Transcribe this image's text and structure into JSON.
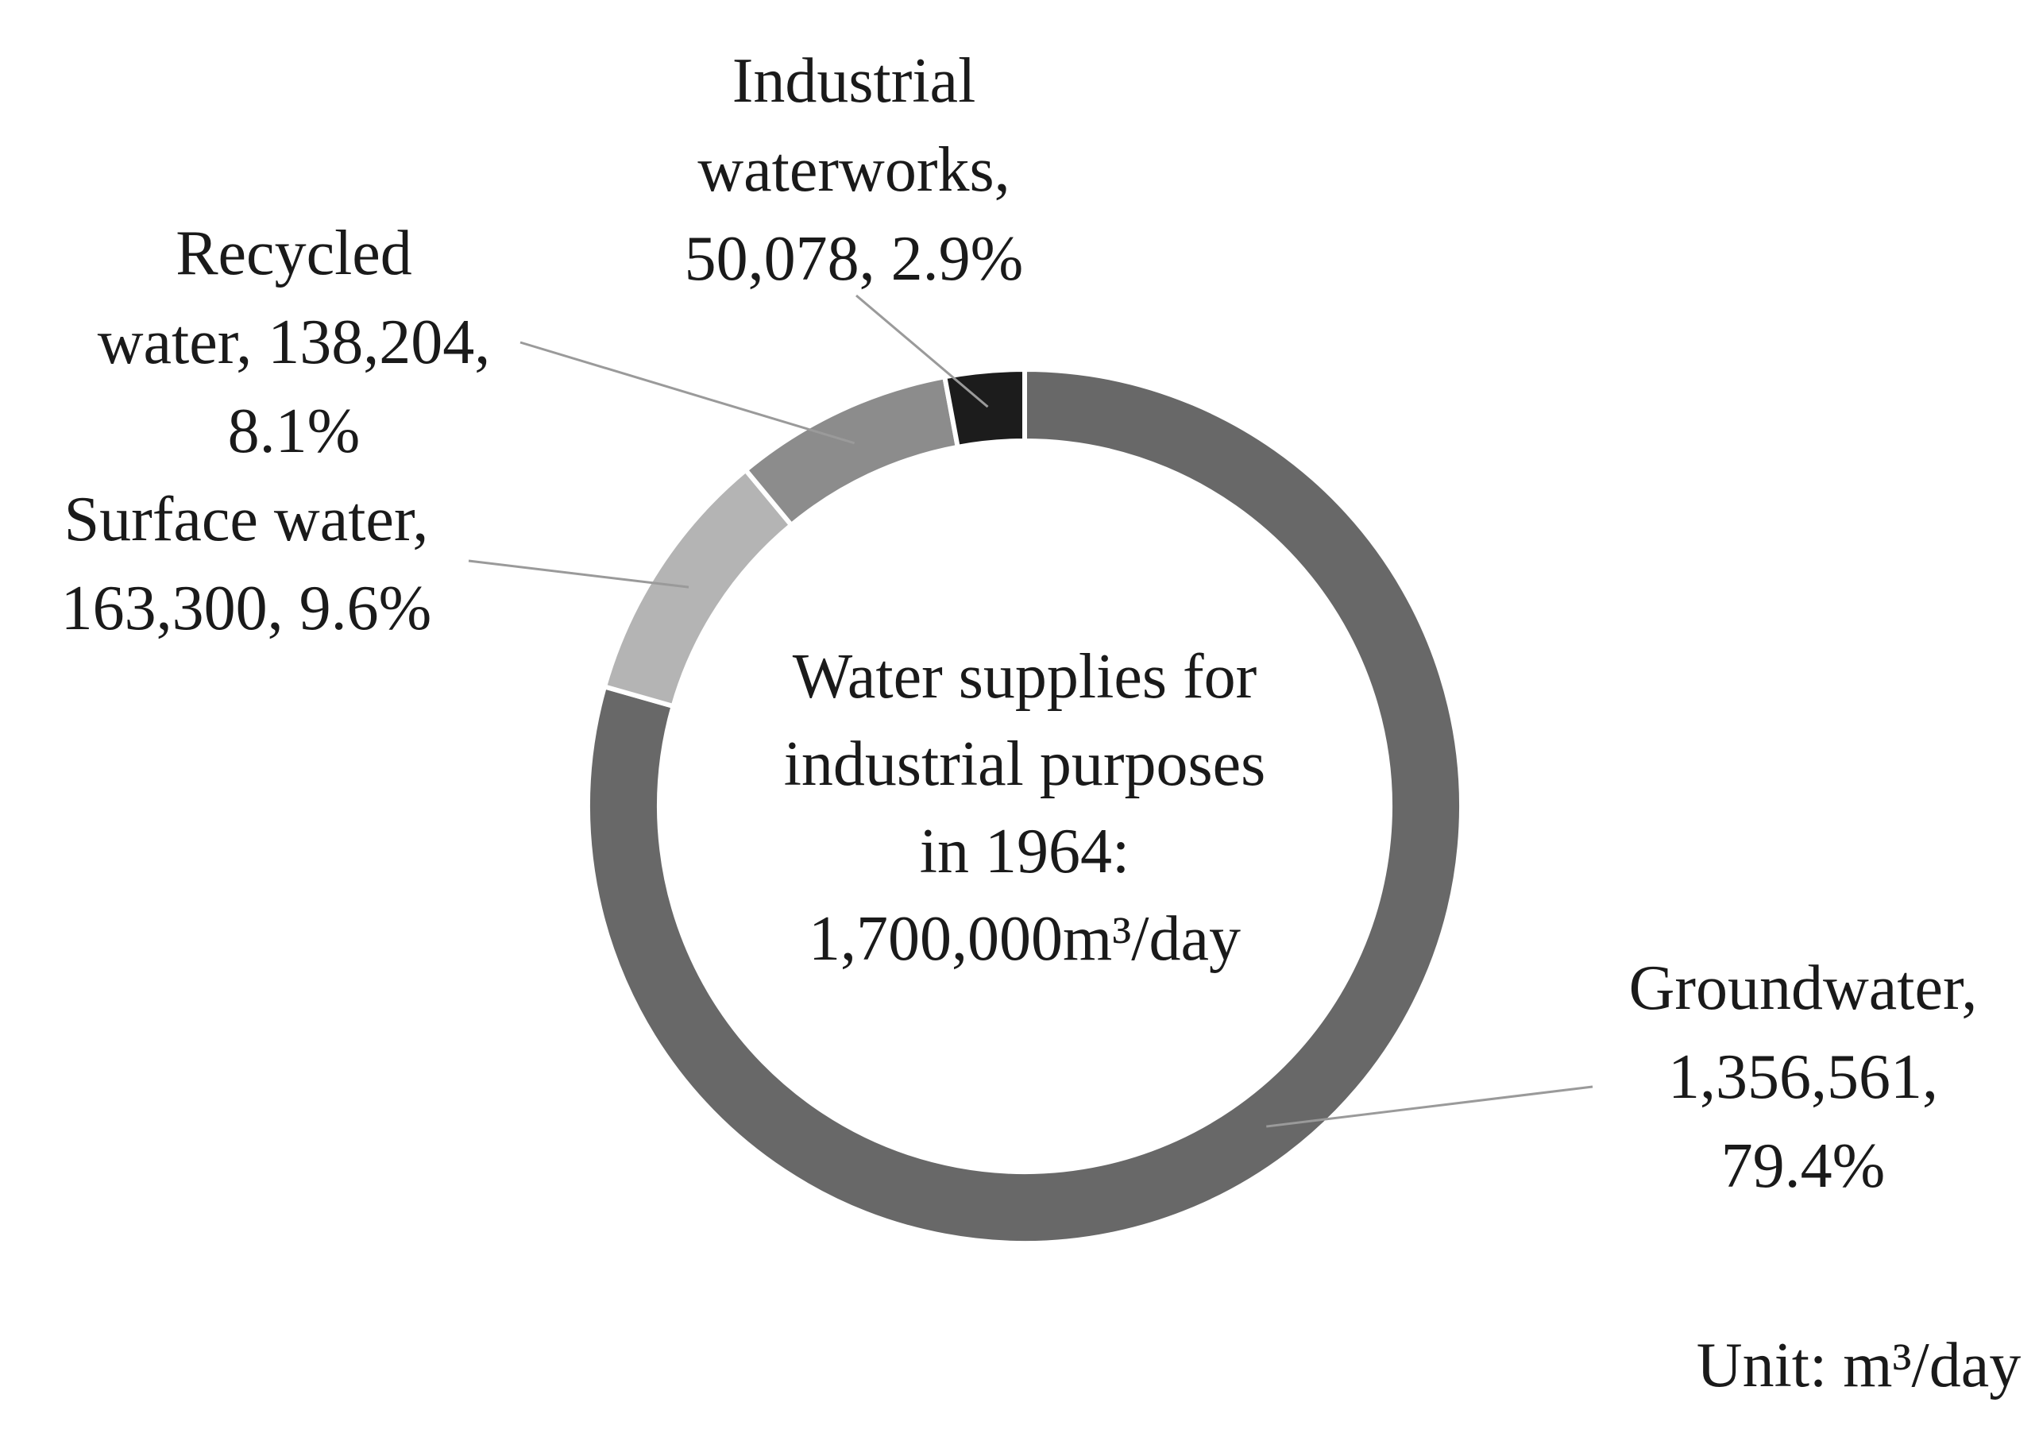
{
  "chart_data": {
    "type": "pie",
    "variant": "donut",
    "title": "Water supplies for industrial purposes in 1964: 1,700,000m³/day",
    "center_label_lines": [
      "Water supplies for",
      "industrial purposes",
      "in 1964:",
      "1,700,000m³/day"
    ],
    "unit_label": "Unit: m³/day",
    "slices": [
      {
        "name": "Groundwater",
        "value": 1356561,
        "percent": 79.4,
        "color": "#686868",
        "label_lines": [
          "Groundwater,",
          "1,356,561,",
          "79.4%"
        ]
      },
      {
        "name": "Surface water",
        "value": 163300,
        "percent": 9.6,
        "color": "#b4b4b4",
        "label_lines": [
          "Surface water,",
          "163,300, 9.6%"
        ]
      },
      {
        "name": "Recycled water",
        "value": 138204,
        "percent": 8.1,
        "color": "#8c8c8c",
        "label_lines": [
          "Recycled",
          "water, 138,204,",
          "8.1%"
        ]
      },
      {
        "name": "Industrial waterworks",
        "value": 50078,
        "percent": 2.9,
        "color": "#1c1c1c",
        "label_lines": [
          "Industrial",
          "waterworks,",
          "50,078, 2.9%"
        ]
      }
    ]
  }
}
